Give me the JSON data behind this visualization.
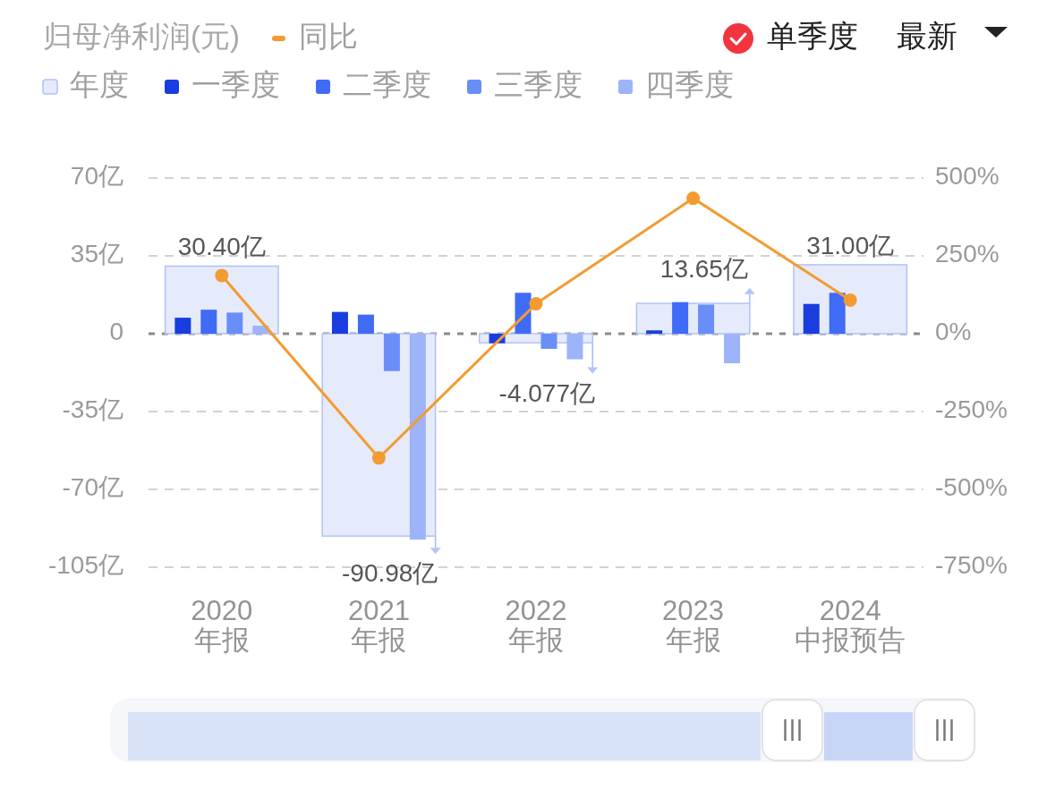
{
  "chart_data": {
    "type": "bar",
    "title": "归母净利润(元)",
    "categories": [
      "2020\n年报",
      "2021\n年报",
      "2022\n年报",
      "2023\n年报",
      "2024\n中报预告"
    ],
    "series": [
      {
        "name": "同比",
        "type": "line",
        "axis": "y2",
        "color": "#f39b31",
        "values": [
          187,
          -399,
          96,
          435,
          108
        ]
      },
      {
        "name": "年度",
        "color": "#e6ebfc",
        "values": [
          30.4,
          -90.98,
          -4.077,
          13.65,
          31.0
        ],
        "value_labels": [
          "30.40亿",
          "-90.98亿",
          "-4.077亿",
          "13.65亿",
          "31.00亿"
        ]
      },
      {
        "name": "一季度",
        "color": "#1a3ddf",
        "values": [
          7.2,
          9.8,
          -4.3,
          1.5,
          13.4
        ]
      },
      {
        "name": "二季度",
        "color": "#3f6bf6",
        "values": [
          10.8,
          8.6,
          18.4,
          14.2,
          18.4
        ]
      },
      {
        "name": "三季度",
        "color": "#6a8ef8",
        "values": [
          9.5,
          -16.8,
          -6.8,
          13.1,
          null
        ]
      },
      {
        "name": "四季度",
        "color": "#9db3fa",
        "values": [
          3.6,
          -92.6,
          -11.5,
          -13.3,
          null
        ]
      }
    ],
    "ylim": [
      -105,
      70
    ],
    "yticks": [
      {
        "value": -105,
        "label": "-105亿"
      },
      {
        "value": -70,
        "label": "-70亿"
      },
      {
        "value": -35,
        "label": "-35亿"
      },
      0,
      {
        "value": 35,
        "label": "35亿"
      },
      {
        "value": 70,
        "label": "70亿"
      }
    ],
    "y2lim": [
      -750,
      500
    ],
    "y2ticks": [
      {
        "value": -750,
        "label": "-750%"
      },
      {
        "value": -500,
        "label": "-500%"
      },
      {
        "value": -250,
        "label": "-250%"
      },
      {
        "value": 0,
        "label": "0%"
      },
      {
        "value": 250,
        "label": "250%"
      },
      {
        "value": 500,
        "label": "500%"
      }
    ],
    "ref_lines": [
      {
        "axis": "y",
        "value": 0,
        "color": "#8a8a8a",
        "line_style": "dashed"
      }
    ],
    "grid": "y",
    "legend": "top left",
    "marker": "circle",
    "annotations": [
      "单季度",
      "最新"
    ]
  }
}
